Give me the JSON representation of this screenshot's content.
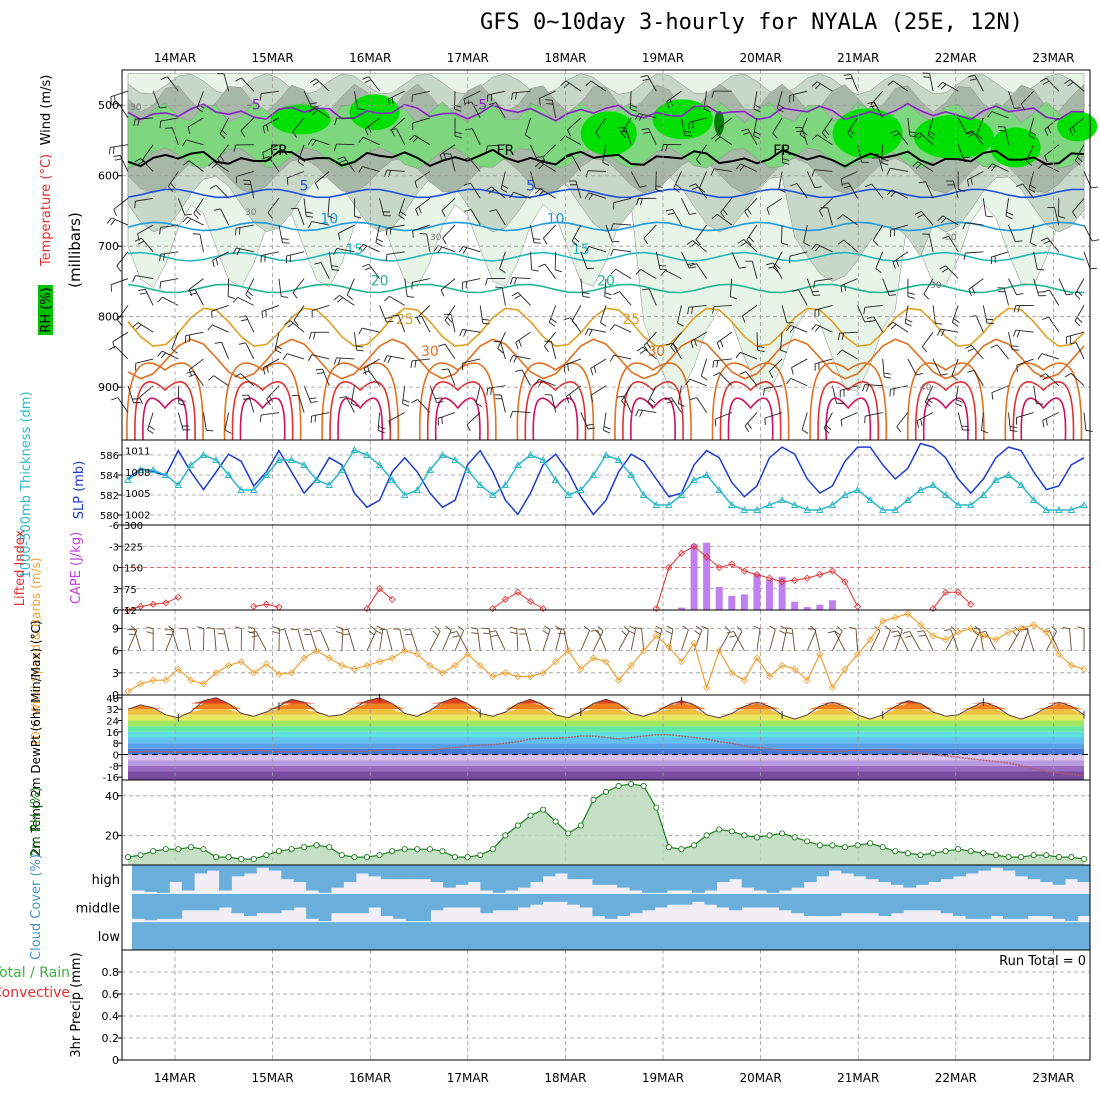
{
  "title": "GFS 0~10day 3-hourly for NYALA (25E, 12N)",
  "colors": {
    "frame": "#000000",
    "rh_light": "#e8f4e8",
    "rh_mid": "#c8d8c8",
    "rh_dark": "#a8b8a8",
    "rh_green": "#7ed67e",
    "rh_bright": "#00e000",
    "rh_deep": "#008000",
    "wind_barb": "#222222",
    "wind_barb_10m": "#6b4a30",
    "slp_line": "#1e3ccf",
    "thickness_line": "#2cb8c8",
    "lifted_index": "#e03030",
    "cape_bar": "#c080f0",
    "wind_speed": "#f0a030",
    "dewpoint_line": "#b06060",
    "rh2m_line": "#208020",
    "rh2m_fill": "#b8d8b8",
    "cloud": "#6aaedc",
    "cloud_clear": "#f2eef6"
  },
  "chart_data": [
    {
      "type": "contour",
      "panel": "upper-air",
      "xlabel": "",
      "ylabel": "(millibars)",
      "side_labels": [
        "RH (%)",
        "Temperature (°C)",
        "Wind (m/s)"
      ],
      "side_label_colors": [
        "#00c000",
        "#e03030",
        "#000000"
      ],
      "y_ticks": [
        500,
        600,
        700,
        800,
        900
      ],
      "ylim": [
        450,
        975
      ],
      "x_days": [
        "14MAR",
        "15MAR",
        "16MAR",
        "17MAR",
        "18MAR",
        "19MAR",
        "20MAR",
        "21MAR",
        "22MAR",
        "23MAR"
      ],
      "freezing_label": "FR",
      "temperature_contours": [
        {
          "label": "-5",
          "color": "#8b1fc8",
          "pressure": 510
        },
        {
          "label": "FR",
          "color": "#000000",
          "pressure": 575
        },
        {
          "label": "5",
          "color": "#1e50e0",
          "pressure": 625
        },
        {
          "label": "10",
          "color": "#1e9ae0",
          "pressure": 672
        },
        {
          "label": "15",
          "color": "#20b8b8",
          "pressure": 715
        },
        {
          "label": "20",
          "color": "#20b890",
          "pressure": 760
        },
        {
          "label": "25",
          "color": "#e0a020",
          "pressure": 815
        },
        {
          "label": "30",
          "color": "#e07020",
          "pressure": 860
        }
      ],
      "rh_contour_labels": [
        "30",
        "30",
        "30",
        "30",
        "30",
        "40"
      ]
    },
    {
      "type": "line",
      "panel": "slp-thickness",
      "left_label": "1000-500mb Thickness (dm)",
      "right_label": "SLP (mb)",
      "left_ticks": [
        580,
        582,
        584,
        586
      ],
      "right_ticks": [
        1002,
        1005,
        1008,
        1011
      ],
      "ylim_thickness": [
        579,
        587.5
      ],
      "ylim_slp": [
        1000.5,
        1012.5
      ],
      "series": [
        {
          "name": "SLP",
          "axis": "slp",
          "values": [
            1007,
            1008.5,
            1008,
            1007.5,
            1011,
            1008,
            1005.5,
            1008,
            1010.5,
            1009.5,
            1006,
            1008,
            1011,
            1008,
            1005,
            1007,
            1010,
            1009,
            1005,
            1003,
            1004,
            1008,
            1010,
            1008,
            1005,
            1003,
            1004,
            1009,
            1011,
            1008,
            1004,
            1002,
            1005,
            1009,
            1010.5,
            1008,
            1004.5,
            1002,
            1004,
            1008,
            1010.5,
            1009.5,
            1007,
            1004.5,
            1005,
            1009,
            1011,
            1010,
            1006.5,
            1004.5,
            1006,
            1010,
            1011.5,
            1010.5,
            1007,
            1005,
            1006,
            1009.5,
            1011.5,
            1011.5,
            1009,
            1007,
            1008.5,
            1012,
            1011.5,
            1010,
            1007,
            1005,
            1007,
            1010,
            1011.5,
            1011,
            1008,
            1005.5,
            1006,
            1009,
            1010
          ]
        },
        {
          "name": "Thickness",
          "axis": "thickness",
          "values": [
            583.5,
            584.5,
            584.5,
            584,
            583,
            585,
            586,
            585.5,
            584,
            582.5,
            582.5,
            584,
            585.5,
            585.5,
            585,
            583.5,
            583,
            584.5,
            586.5,
            586,
            585,
            583.5,
            582,
            582.5,
            584.5,
            586,
            585.5,
            584.5,
            583,
            582,
            583,
            585,
            586,
            585.5,
            583.5,
            582,
            582.5,
            584,
            586,
            585.5,
            584,
            582,
            581,
            581,
            582,
            583.5,
            584,
            582.5,
            581,
            580.5,
            580.5,
            581,
            581.5,
            581,
            580.5,
            580.5,
            581,
            582,
            582.5,
            581.5,
            580.5,
            580.5,
            581.5,
            582.5,
            583,
            582,
            581,
            581,
            582,
            583.5,
            584,
            583,
            581.5,
            580.5,
            580.5,
            580.5,
            581
          ]
        }
      ]
    },
    {
      "type": "bar+line",
      "panel": "cape-li",
      "left_label": "Lifted Index",
      "right_label": "CAPE (J/kg)",
      "left_ticks": [
        "-6",
        "-3",
        "0",
        "3",
        "6"
      ],
      "right_ticks": [
        "12",
        "75",
        "150",
        "225",
        "300"
      ],
      "li_range": [
        6,
        -6
      ],
      "cape_range": [
        12,
        300
      ],
      "series": [
        {
          "name": "CAPE",
          "x_index": [
            44,
            45,
            46,
            47,
            48,
            49,
            50,
            51,
            52,
            53,
            54,
            55,
            56,
            57
          ],
          "values": [
            20,
            235,
            240,
            90,
            60,
            65,
            135,
            115,
            125,
            40,
            22,
            30,
            45,
            12
          ]
        },
        {
          "name": "Lifted Index",
          "segments": [
            {
              "x_index": [
                0,
                1,
                2,
                3,
                4
              ],
              "values": [
                6,
                5.5,
                5.2,
                5,
                4.2
              ]
            },
            {
              "x_index": [
                10,
                11,
                12
              ],
              "values": [
                5.5,
                5.2,
                5.6
              ]
            },
            {
              "x_index": [
                19,
                20,
                21
              ],
              "values": [
                5.8,
                3,
                4.5
              ]
            },
            {
              "x_index": [
                29,
                30,
                31,
                32,
                33
              ],
              "values": [
                5.8,
                4.5,
                3.5,
                4.8,
                5.8
              ]
            },
            {
              "x_index": [
                42,
                43,
                44,
                45,
                46,
                47,
                48,
                49,
                50,
                51,
                52,
                53,
                54,
                55,
                56,
                57,
                58
              ],
              "values": [
                5.8,
                0,
                -2,
                -3,
                -1.5,
                0,
                -0.5,
                0.5,
                1,
                1.5,
                2,
                1.8,
                1.5,
                1,
                0.5,
                2,
                5.5
              ]
            },
            {
              "x_index": [
                64,
                65,
                66,
                67
              ],
              "values": [
                5.8,
                3.5,
                3.5,
                5.2
              ]
            }
          ]
        }
      ]
    },
    {
      "type": "line",
      "panel": "wind10m",
      "left_label": "10m Wind Speed & Barbs (m/s)",
      "left_ticks": [
        0,
        3,
        6,
        9
      ],
      "ylim": [
        0,
        11.5
      ],
      "series": [
        {
          "name": "10m Wind Speed",
          "values": [
            0.5,
            1.5,
            2,
            2,
            3.5,
            2,
            1.5,
            3,
            4,
            4.5,
            3,
            4.2,
            2.8,
            3,
            5,
            6,
            5,
            4,
            3.5,
            4,
            4.5,
            5,
            6,
            5.5,
            4,
            3,
            4,
            5.5,
            4,
            2.5,
            3,
            2.5,
            2.5,
            3,
            4.5,
            6,
            3.5,
            5,
            4.5,
            2,
            4,
            6,
            8,
            6.5,
            4.5,
            7,
            1,
            6,
            3,
            2,
            5,
            2.5,
            4,
            3.5,
            2,
            5.5,
            1,
            3.5,
            5.5,
            7.5,
            10,
            10.5,
            11,
            9.5,
            8,
            7.5,
            8.5,
            9,
            8,
            7.5,
            8.5,
            9,
            9.5,
            8.5,
            5.5,
            4,
            3.5
          ]
        }
      ]
    },
    {
      "type": "area",
      "panel": "temperature",
      "left_label": "2m Temp 2m DewPt (6hr Min/Max) (°C)",
      "left_ticks": [
        -16,
        -8,
        0,
        8,
        16,
        24,
        32,
        40
      ],
      "ylim": [
        -18,
        42
      ],
      "series": [
        {
          "name": "2m Temp",
          "values": [
            32,
            35,
            33,
            28,
            26,
            30,
            38,
            40,
            36,
            29,
            27,
            30,
            34,
            39,
            37,
            30,
            27,
            28,
            33,
            38,
            40,
            36,
            29,
            27,
            31,
            37,
            40,
            36,
            29,
            27,
            30,
            36,
            39,
            35,
            28,
            26,
            30,
            36,
            39,
            36,
            29,
            27,
            30,
            35,
            38,
            35,
            28,
            26,
            29,
            34,
            37,
            34,
            28,
            25,
            28,
            34,
            37,
            34,
            28,
            25,
            28,
            34,
            38,
            36,
            30,
            27,
            28,
            33,
            37,
            34,
            28,
            25,
            28,
            33,
            37,
            34,
            28
          ]
        },
        {
          "name": "2m DewPt",
          "values": [
            2,
            2,
            2.5,
            2,
            1.5,
            2,
            2,
            2,
            2,
            2.5,
            3,
            2.5,
            2,
            2,
            2.5,
            3,
            3,
            2.5,
            2,
            2.5,
            3,
            3.5,
            3,
            2.5,
            3,
            4,
            5,
            6,
            6.5,
            7,
            8,
            9,
            11,
            11.5,
            11.5,
            12,
            13,
            13,
            12,
            11,
            12,
            13,
            14,
            14,
            13,
            12,
            11,
            9,
            8,
            6,
            5,
            4,
            3,
            3,
            2.5,
            2,
            2,
            2.5,
            3,
            3,
            3.5,
            3,
            2,
            1,
            0,
            -1,
            -2,
            -3,
            -4,
            -5,
            -6,
            -8,
            -10,
            -12,
            -13,
            -14,
            -15
          ]
        }
      ]
    },
    {
      "type": "area",
      "panel": "rh2m",
      "left_label": "2m RH (%)",
      "left_ticks": [
        20,
        40
      ],
      "ylim": [
        5,
        48
      ],
      "series": [
        {
          "name": "2m RH",
          "values": [
            9,
            10,
            12,
            13,
            13,
            14,
            13,
            9,
            9,
            8,
            8,
            10,
            12,
            13,
            14,
            15,
            14,
            10,
            9,
            9,
            10,
            12,
            13,
            13,
            13,
            12,
            9,
            9,
            10,
            13,
            20,
            25,
            30,
            33,
            27,
            21,
            25,
            38,
            42,
            45,
            46,
            45,
            34,
            14,
            13,
            15,
            20,
            23,
            22,
            20,
            19,
            20,
            21,
            19,
            17,
            15,
            15,
            14,
            15,
            16,
            14,
            12,
            11,
            10,
            11,
            12,
            13,
            12,
            11,
            10,
            9,
            9,
            10,
            10,
            9,
            9,
            8
          ]
        }
      ]
    },
    {
      "type": "heatmap",
      "panel": "cloud",
      "left_label": "Cloud Cover (%)",
      "rows": [
        "high",
        "middle",
        "low"
      ],
      "series": [
        {
          "name": "high",
          "values": [
            0.9,
            0.95,
            1,
            0.6,
            0.9,
            0.3,
            0.2,
            0.9,
            0.4,
            0.3,
            0.1,
            0.2,
            0.5,
            0.6,
            0.9,
            1,
            0.8,
            0.6,
            0.3,
            0.4,
            0.5,
            0.5,
            0.5,
            0.5,
            0.6,
            0.8,
            0.7,
            0.6,
            0.9,
            1,
            0.9,
            0.8,
            0.6,
            0.4,
            0.3,
            0.5,
            0.5,
            0.7,
            0.7,
            0.8,
            0.9,
            1,
            1,
            0.9,
            0.9,
            1,
            0.9,
            0.6,
            0.5,
            0.8,
            0.9,
            1,
            0.9,
            0.8,
            0.6,
            0.4,
            0.2,
            0.3,
            0.4,
            0.5,
            0.6,
            0.7,
            0.8,
            0.7,
            0.6,
            0.5,
            0.4,
            0.3,
            0.2,
            0.1,
            0.2,
            0.4,
            0.5,
            0.6,
            0.7,
            0.5,
            0.6
          ]
        },
        {
          "name": "middle",
          "values": [
            0.9,
            0.95,
            0.9,
            0.9,
            0.6,
            0.6,
            0.6,
            0.5,
            0.7,
            0.8,
            0.7,
            0.7,
            0.6,
            0.5,
            0.9,
            1,
            0.7,
            0.7,
            0.7,
            0.5,
            0.8,
            0.9,
            1,
            1,
            0.6,
            0.5,
            0.5,
            0.5,
            0.7,
            0.6,
            0.6,
            0.5,
            0.4,
            0.3,
            0.3,
            0.4,
            0.5,
            0.8,
            0.9,
            0.8,
            0.7,
            0.6,
            0.5,
            0.4,
            0.4,
            0.3,
            0.4,
            0.5,
            0.6,
            0.5,
            0.5,
            0.5,
            0.6,
            0.7,
            0.8,
            0.8,
            0.8,
            0.7,
            0.7,
            0.7,
            0.8,
            0.7,
            0.6,
            0.6,
            0.6,
            0.7,
            0.8,
            0.9,
            0.9,
            0.8,
            0.9,
            0.9,
            0.8,
            0.8,
            0.9,
            1,
            0.8
          ]
        },
        {
          "name": "low",
          "values": [
            1,
            1,
            1,
            1,
            1,
            1,
            1,
            1,
            1,
            1,
            1,
            1,
            1,
            1,
            1,
            1,
            1,
            1,
            1,
            1,
            1,
            1,
            1,
            1,
            1,
            1,
            1,
            1,
            1,
            1,
            1,
            1,
            1,
            1,
            1,
            1,
            1,
            1,
            1,
            1,
            1,
            1,
            1,
            1,
            1,
            1,
            1,
            1,
            1,
            1,
            1,
            1,
            1,
            1,
            1,
            1,
            1,
            1,
            1,
            1,
            1,
            1,
            1,
            1,
            1,
            1,
            1,
            1,
            1,
            1,
            1,
            1,
            1,
            1,
            1,
            1,
            1
          ]
        }
      ]
    },
    {
      "type": "bar",
      "panel": "precip",
      "left_label": "3hr Precip (mm)",
      "legend_labels": [
        "Total / Rain",
        "Convective"
      ],
      "left_ticks": [
        "0",
        "0.2",
        "0.4",
        "0.6",
        "0.8"
      ],
      "ylim": [
        0,
        1
      ],
      "run_total": "Run Total = 0",
      "series": [
        {
          "name": "Total / Rain",
          "values": []
        },
        {
          "name": "Convective",
          "values": []
        }
      ]
    }
  ]
}
